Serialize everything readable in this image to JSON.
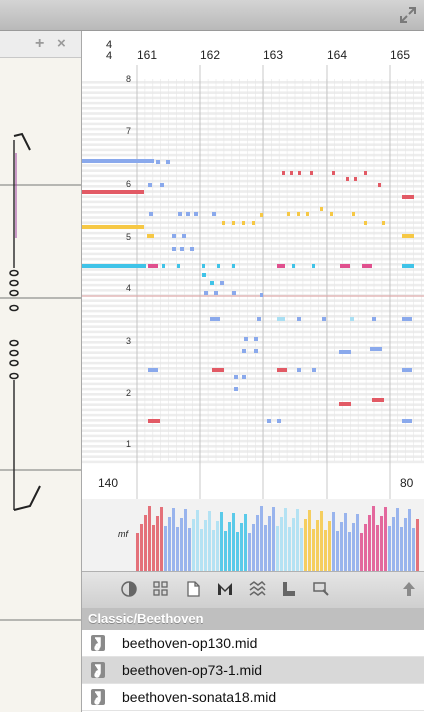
{
  "window": {
    "fullscreen_icon": "fullscreen-arrows-icon"
  },
  "left_pane": {
    "add_icon": "+",
    "close_icon": "×"
  },
  "piano_roll": {
    "time_signature": {
      "numerator": "4",
      "denominator": "4"
    },
    "bar_numbers": [
      "161",
      "162",
      "163",
      "164",
      "165"
    ],
    "key_labels": [
      "8",
      "7",
      "6",
      "5",
      "4",
      "3",
      "2",
      "1"
    ],
    "tempo_start": "140",
    "tempo_end": "80",
    "dynamic_marking": "mf"
  },
  "toolbar": {
    "icons": [
      "contrast-icon",
      "grid-icon",
      "page-icon",
      "m-logo-icon",
      "waves-icon",
      "chart-icon",
      "magnify-icon",
      "upload-arrow-icon"
    ]
  },
  "playlist": {
    "folder": "Classic/Beethoven",
    "files": [
      {
        "name": "beethoven-op130.mid",
        "selected": false
      },
      {
        "name": "beethoven-op73-1.mid",
        "selected": true
      },
      {
        "name": "beethoven-sonata18.mid",
        "selected": false
      }
    ]
  },
  "colors": {
    "blue": "#8aa9ec",
    "red": "#e25a65",
    "yellow": "#f6c845",
    "cyan": "#3fc3e8",
    "magenta": "#e0508e",
    "light_cyan": "#a9dff3"
  }
}
